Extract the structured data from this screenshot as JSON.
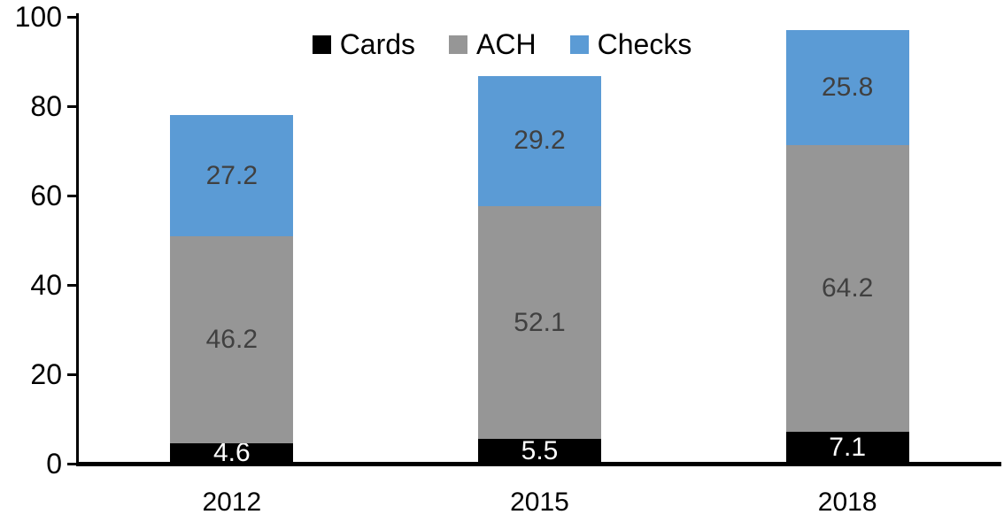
{
  "chart_data": {
    "type": "bar",
    "stacked": true,
    "title": "",
    "xlabel": "",
    "ylabel": "",
    "categories": [
      "2012",
      "2015",
      "2018"
    ],
    "series": [
      {
        "name": "Cards",
        "color": "#000000",
        "label_color": "#ffffff",
        "values": [
          4.6,
          5.5,
          7.1
        ]
      },
      {
        "name": "ACH",
        "color": "#969696",
        "label_color": "#404040",
        "values": [
          46.2,
          52.1,
          64.2
        ]
      },
      {
        "name": "Checks",
        "color": "#5B9BD5",
        "label_color": "#404040",
        "values": [
          27.2,
          29.2,
          25.8
        ]
      }
    ],
    "totals": [
      78.0,
      86.8,
      97.1
    ],
    "ylim": [
      0,
      100
    ],
    "yticks": [
      0,
      20,
      40,
      60,
      80,
      100
    ],
    "grid": false,
    "legend_position": "top-center",
    "legend_labels": [
      "Cards",
      "ACH",
      "Checks"
    ],
    "axis_color": "#000000",
    "background_color": "#ffffff"
  }
}
